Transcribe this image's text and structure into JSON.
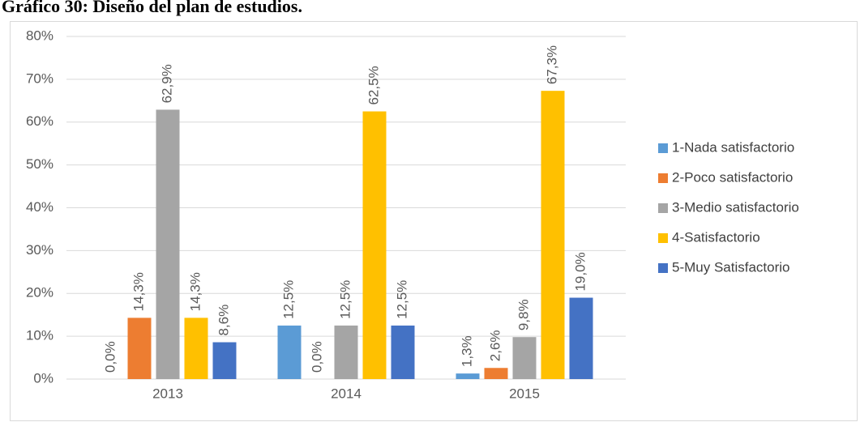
{
  "chart_data": {
    "type": "bar",
    "title": "Gráfico 30: Diseño del plan de estudios.",
    "categories": [
      "2013",
      "2014",
      "2015"
    ],
    "series": [
      {
        "name": "1-Nada satisfactorio",
        "color": "#5b9bd5",
        "values": [
          0.0,
          12.5,
          1.3
        ],
        "value_labels": [
          "0,0%",
          "12,5%",
          "1,3%"
        ]
      },
      {
        "name": "2-Poco satisfactorio",
        "color": "#ed7d31",
        "values": [
          14.3,
          0.0,
          2.6
        ],
        "value_labels": [
          "14,3%",
          "0,0%",
          "2,6%"
        ]
      },
      {
        "name": "3-Medio satisfactorio",
        "color": "#a5a5a5",
        "values": [
          62.9,
          12.5,
          9.8
        ],
        "value_labels": [
          "62,9%",
          "12,5%",
          "9,8%"
        ]
      },
      {
        "name": "4-Satisfactorio",
        "color": "#ffc000",
        "values": [
          14.3,
          62.5,
          67.3
        ],
        "value_labels": [
          "14,3%",
          "62,5%",
          "67,3%"
        ]
      },
      {
        "name": "5-Muy Satisfactorio",
        "color": "#4472c4",
        "values": [
          8.6,
          12.5,
          19.0
        ],
        "value_labels": [
          "8,6%",
          "12,5%",
          "19,0%"
        ]
      }
    ],
    "ylim": [
      0,
      80
    ],
    "yticks": [
      {
        "value": 0,
        "label": "0%"
      },
      {
        "value": 10,
        "label": "10%"
      },
      {
        "value": 20,
        "label": "20%"
      },
      {
        "value": 30,
        "label": "30%"
      },
      {
        "value": 40,
        "label": "40%"
      },
      {
        "value": 50,
        "label": "50%"
      },
      {
        "value": 60,
        "label": "60%"
      },
      {
        "value": 70,
        "label": "70%"
      },
      {
        "value": 80,
        "label": "80%"
      }
    ],
    "grid": true,
    "legend": "right"
  }
}
